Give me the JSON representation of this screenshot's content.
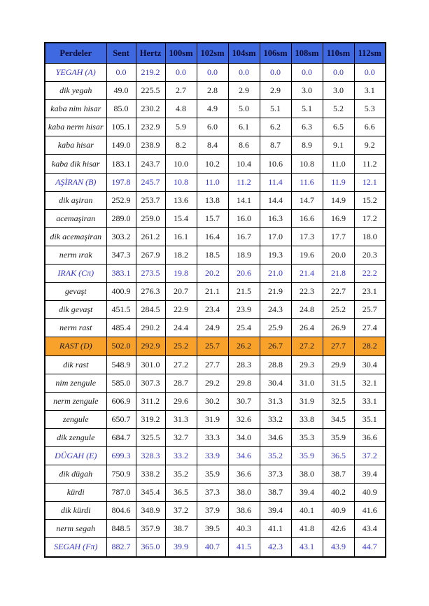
{
  "page": {
    "background": "#FFFFFF"
  },
  "table": {
    "colors": {
      "header_bg": "#3F69E1",
      "header_text": "#0A0A33",
      "accent_text": "#3333CC",
      "highlight_bg": "#F9A22B",
      "normal_text": "#151515",
      "border": "#000000"
    },
    "headers": [
      "Perdeler",
      "Sent",
      "Hertz",
      "100sm",
      "102sm",
      "104sm",
      "106sm",
      "108sm",
      "110sm",
      "112sm"
    ],
    "rows": [
      {
        "name": "YEGAH (A)",
        "style": "accent",
        "values": [
          "0.0",
          "219.2",
          "0.0",
          "0.0",
          "0.0",
          "0.0",
          "0.0",
          "0.0",
          "0.0"
        ]
      },
      {
        "name": "dik yegah",
        "style": "normal",
        "values": [
          "49.0",
          "225.5",
          "2.7",
          "2.8",
          "2.9",
          "2.9",
          "3.0",
          "3.0",
          "3.1"
        ]
      },
      {
        "name": "kaba nim hisar",
        "style": "normal",
        "values": [
          "85.0",
          "230.2",
          "4.8",
          "4.9",
          "5.0",
          "5.1",
          "5.1",
          "5.2",
          "5.3"
        ]
      },
      {
        "name": "kaba nerm hisar",
        "style": "normal",
        "values": [
          "105.1",
          "232.9",
          "5.9",
          "6.0",
          "6.1",
          "6.2",
          "6.3",
          "6.5",
          "6.6"
        ]
      },
      {
        "name": "kaba hisar",
        "style": "normal",
        "values": [
          "149.0",
          "238.9",
          "8.2",
          "8.4",
          "8.6",
          "8.7",
          "8.9",
          "9.1",
          "9.2"
        ]
      },
      {
        "name": "kaba dik hisar",
        "style": "normal",
        "values": [
          "183.1",
          "243.7",
          "10.0",
          "10.2",
          "10.4",
          "10.6",
          "10.8",
          "11.0",
          "11.2"
        ]
      },
      {
        "name": "AŞİRAN (B)",
        "style": "accent",
        "values": [
          "197.8",
          "245.7",
          "10.8",
          "11.0",
          "11.2",
          "11.4",
          "11.6",
          "11.9",
          "12.1"
        ]
      },
      {
        "name": "dik aşiran",
        "style": "normal",
        "values": [
          "252.9",
          "253.7",
          "13.6",
          "13.8",
          "14.1",
          "14.4",
          "14.7",
          "14.9",
          "15.2"
        ]
      },
      {
        "name": "acemaşiran",
        "style": "normal",
        "values": [
          "289.0",
          "259.0",
          "15.4",
          "15.7",
          "16.0",
          "16.3",
          "16.6",
          "16.9",
          "17.2"
        ]
      },
      {
        "name": "dik acemaşiran",
        "style": "normal",
        "values": [
          "303.2",
          "261.2",
          "16.1",
          "16.4",
          "16.7",
          "17.0",
          "17.3",
          "17.7",
          "18.0"
        ]
      },
      {
        "name": "nerm ırak",
        "style": "normal",
        "values": [
          "347.3",
          "267.9",
          "18.2",
          "18.5",
          "18.9",
          "19.3",
          "19.6",
          "20.0",
          "20.3"
        ]
      },
      {
        "name": "IRAK (Cπ)",
        "style": "accent",
        "values": [
          "383.1",
          "273.5",
          "19.8",
          "20.2",
          "20.6",
          "21.0",
          "21.4",
          "21.8",
          "22.2"
        ]
      },
      {
        "name": "gevaşt",
        "style": "normal",
        "values": [
          "400.9",
          "276.3",
          "20.7",
          "21.1",
          "21.5",
          "21.9",
          "22.3",
          "22.7",
          "23.1"
        ]
      },
      {
        "name": "dik gevaşt",
        "style": "normal",
        "values": [
          "451.5",
          "284.5",
          "22.9",
          "23.4",
          "23.9",
          "24.3",
          "24.8",
          "25.2",
          "25.7"
        ]
      },
      {
        "name": "nerm rast",
        "style": "normal",
        "values": [
          "485.4",
          "290.2",
          "24.4",
          "24.9",
          "25.4",
          "25.9",
          "26.4",
          "26.9",
          "27.4"
        ]
      },
      {
        "name": "RAST (D)",
        "style": "highlight",
        "values": [
          "502.0",
          "292.9",
          "25.2",
          "25.7",
          "26.2",
          "26.7",
          "27.2",
          "27.7",
          "28.2"
        ]
      },
      {
        "name": "dik rast",
        "style": "normal",
        "values": [
          "548.9",
          "301.0",
          "27.2",
          "27.7",
          "28.3",
          "28.8",
          "29.3",
          "29.9",
          "30.4"
        ]
      },
      {
        "name": "nim zengule",
        "style": "normal",
        "values": [
          "585.0",
          "307.3",
          "28.7",
          "29.2",
          "29.8",
          "30.4",
          "31.0",
          "31.5",
          "32.1"
        ]
      },
      {
        "name": "nerm zengule",
        "style": "normal",
        "values": [
          "606.9",
          "311.2",
          "29.6",
          "30.2",
          "30.7",
          "31.3",
          "31.9",
          "32.5",
          "33.1"
        ]
      },
      {
        "name": "zengule",
        "style": "normal",
        "values": [
          "650.7",
          "319.2",
          "31.3",
          "31.9",
          "32.6",
          "33.2",
          "33.8",
          "34.5",
          "35.1"
        ]
      },
      {
        "name": "dik zengule",
        "style": "normal",
        "values": [
          "684.7",
          "325.5",
          "32.7",
          "33.3",
          "34.0",
          "34.6",
          "35.3",
          "35.9",
          "36.6"
        ]
      },
      {
        "name": "DÜGAH (E)",
        "style": "accent",
        "values": [
          "699.3",
          "328.3",
          "33.2",
          "33.9",
          "34.6",
          "35.2",
          "35.9",
          "36.5",
          "37.2"
        ]
      },
      {
        "name": "dik dügah",
        "style": "normal",
        "values": [
          "750.9",
          "338.2",
          "35.2",
          "35.9",
          "36.6",
          "37.3",
          "38.0",
          "38.7",
          "39.4"
        ]
      },
      {
        "name": "kürdi",
        "style": "normal",
        "values": [
          "787.0",
          "345.4",
          "36.5",
          "37.3",
          "38.0",
          "38.7",
          "39.4",
          "40.2",
          "40.9"
        ]
      },
      {
        "name": "dik kürdi",
        "style": "normal",
        "values": [
          "804.6",
          "348.9",
          "37.2",
          "37.9",
          "38.6",
          "39.4",
          "40.1",
          "40.9",
          "41.6"
        ]
      },
      {
        "name": "nerm segah",
        "style": "normal",
        "values": [
          "848.5",
          "357.9",
          "38.7",
          "39.5",
          "40.3",
          "41.1",
          "41.8",
          "42.6",
          "43.4"
        ]
      },
      {
        "name": "SEGAH (Fπ)",
        "style": "accent",
        "values": [
          "882.7",
          "365.0",
          "39.9",
          "40.7",
          "41.5",
          "42.3",
          "43.1",
          "43.9",
          "44.7"
        ]
      }
    ]
  }
}
